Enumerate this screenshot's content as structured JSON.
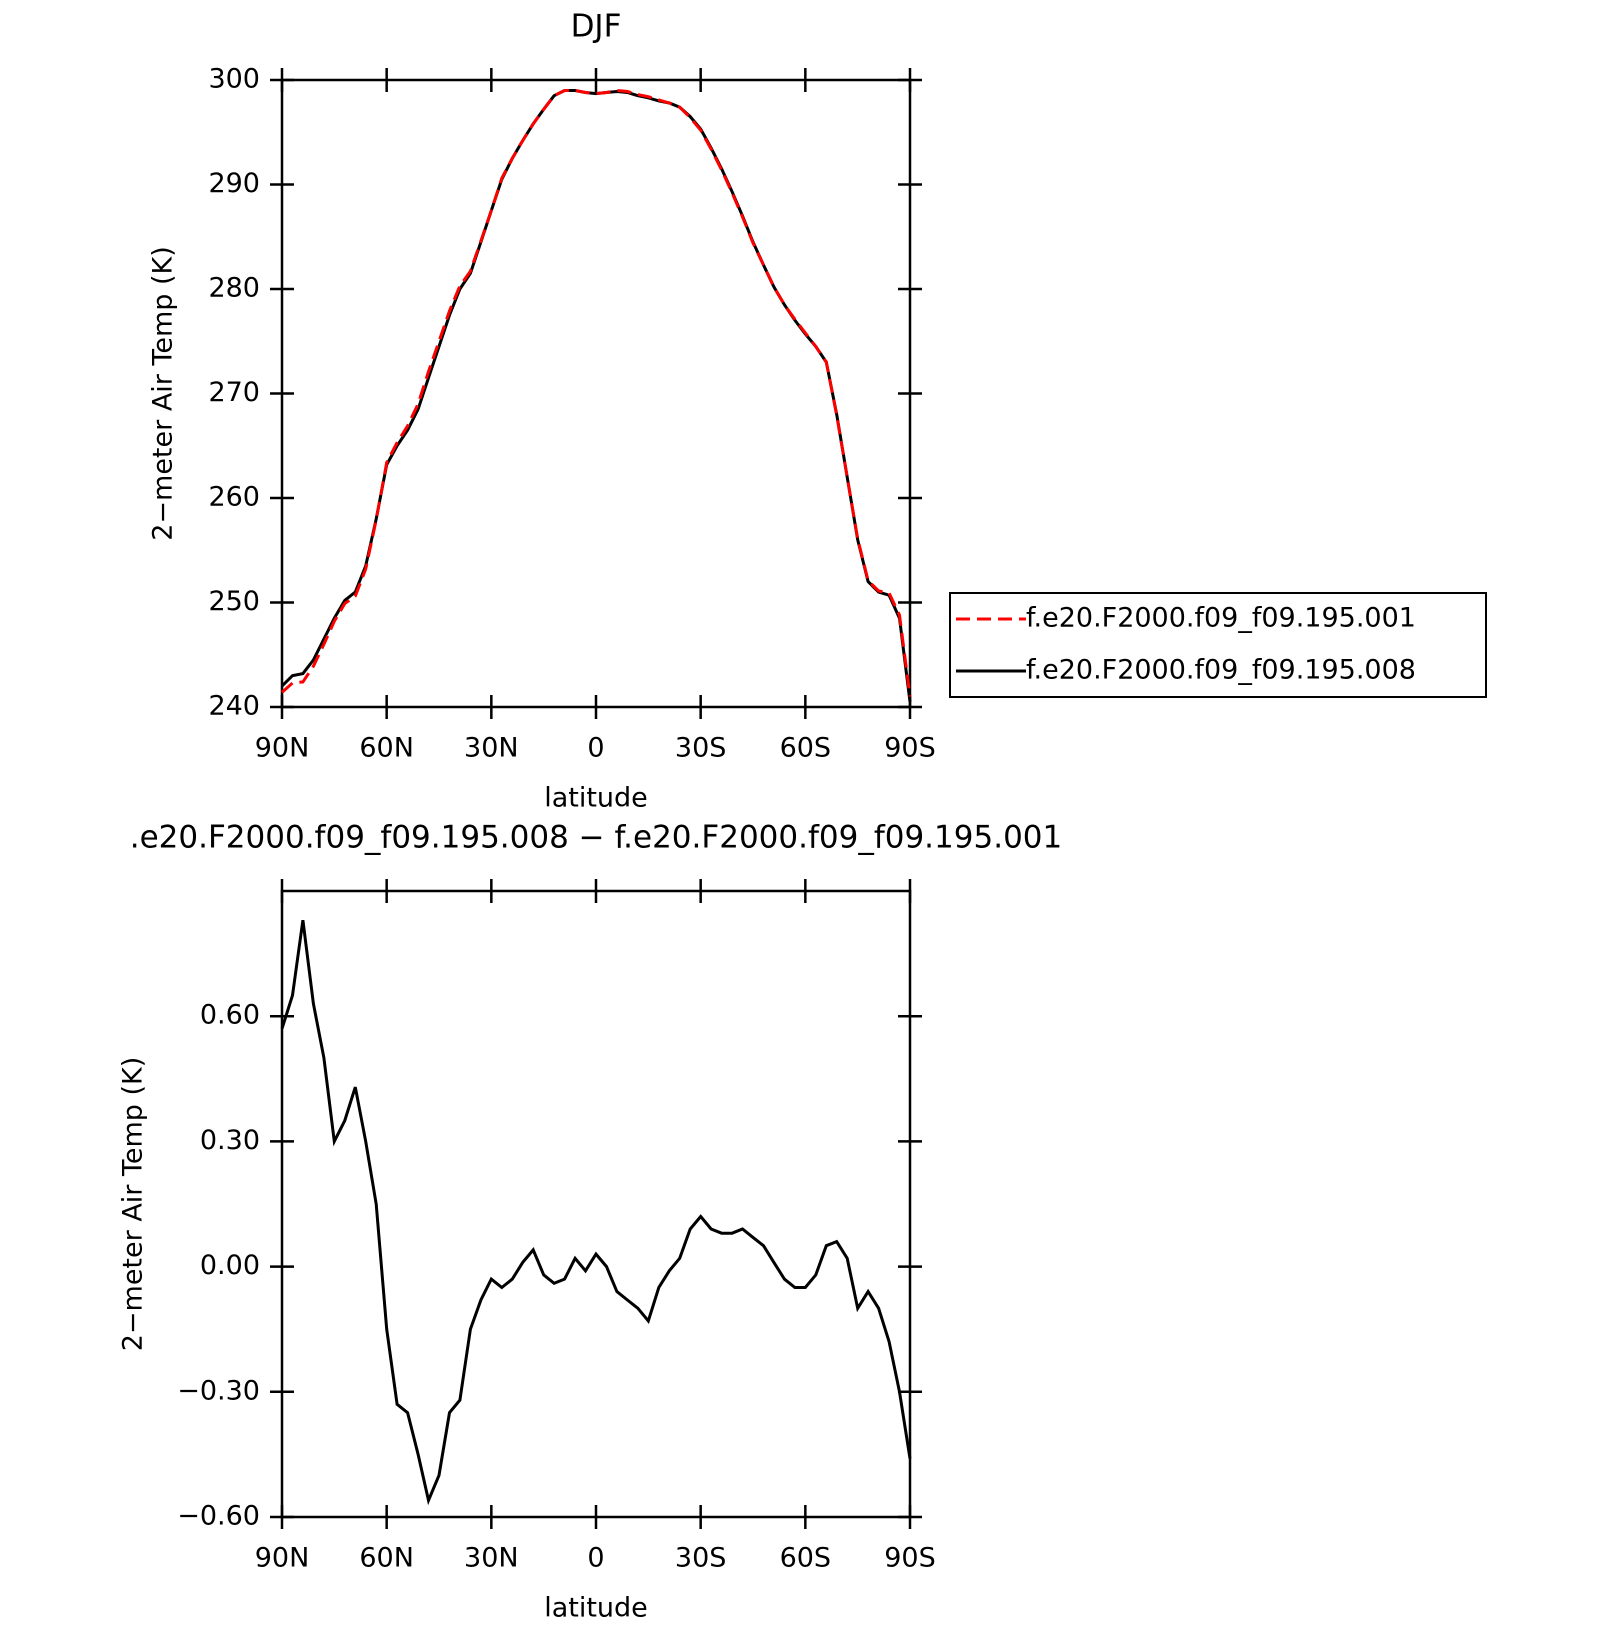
{
  "chart_data": [
    {
      "type": "line",
      "title": "DJF",
      "xlabel": "latitude",
      "ylabel": "2−meter Air Temp (K)",
      "x": [
        90,
        87,
        84,
        81,
        78,
        75,
        72,
        69,
        66,
        63,
        60,
        57,
        54,
        51,
        48,
        45,
        42,
        39,
        36,
        33,
        30,
        27,
        24,
        21,
        18,
        15,
        12,
        9,
        6,
        3,
        0,
        -3,
        -6,
        -9,
        -12,
        -15,
        -18,
        -21,
        -24,
        -27,
        -30,
        -33,
        -36,
        -39,
        -42,
        -45,
        -48,
        -51,
        -54,
        -57,
        -60,
        -63,
        -66,
        -69,
        -72,
        -75,
        -78,
        -81,
        -84,
        -87,
        -90
      ],
      "xlim": [
        90,
        -90
      ],
      "xticks": [
        {
          "value": 90,
          "label": "90N"
        },
        {
          "value": 60,
          "label": "60N"
        },
        {
          "value": 30,
          "label": "30N"
        },
        0,
        {
          "value": -30,
          "label": "30S"
        },
        {
          "value": -60,
          "label": "60S"
        },
        {
          "value": -90,
          "label": "90S"
        }
      ],
      "ylim": [
        240,
        300
      ],
      "yticks": [
        240,
        250,
        260,
        270,
        280,
        290,
        300
      ],
      "legend": "right",
      "series": [
        {
          "name": "f.e20.F2000.f09_f09.195.001",
          "color": "#ff0000",
          "dash": "dashed",
          "values": [
            241.4,
            242.3,
            242.4,
            243.9,
            246.0,
            248.2,
            249.9,
            250.6,
            253.2,
            257.9,
            263.4,
            265.3,
            266.9,
            269.0,
            272.1,
            275.0,
            277.9,
            280.3,
            281.7,
            284.6,
            287.5,
            290.6,
            292.5,
            294.2,
            295.8,
            297.2,
            298.5,
            299.0,
            299.0,
            298.8,
            298.7,
            298.8,
            299.0,
            298.9,
            298.6,
            298.4,
            298.1,
            297.8,
            297.4,
            296.4,
            295.2,
            293.4,
            291.4,
            289.2,
            286.9,
            284.4,
            282.3,
            280.2,
            278.5,
            277.1,
            275.8,
            274.5,
            273.0,
            267.9,
            262.0,
            256.1,
            252.1,
            251.1,
            250.9,
            248.8,
            241.0
          ]
        },
        {
          "name": "f.e20.F2000.f09_f09.195.008",
          "color": "#000000",
          "dash": "solid",
          "values": [
            242.0,
            243.0,
            243.2,
            244.5,
            246.5,
            248.5,
            250.2,
            251.0,
            253.5,
            258.0,
            263.2,
            265.0,
            266.5,
            268.5,
            271.5,
            274.5,
            277.5,
            280.0,
            281.5,
            284.5,
            287.5,
            290.5,
            292.5,
            294.2,
            295.8,
            297.2,
            298.5,
            299.0,
            299.0,
            298.8,
            298.7,
            298.8,
            298.9,
            298.8,
            298.5,
            298.3,
            298.0,
            297.8,
            297.4,
            296.5,
            295.3,
            293.5,
            291.5,
            289.3,
            287.0,
            284.5,
            282.3,
            280.2,
            278.5,
            277.0,
            275.7,
            274.5,
            273.0,
            268.0,
            262.0,
            256.0,
            252.0,
            251.0,
            250.7,
            248.5,
            240.5
          ]
        }
      ]
    },
    {
      "type": "line",
      "title": ".e20.F2000.f09_f09.195.008 − f.e20.F2000.f09_f09.195.001",
      "xlabel": "latitude",
      "ylabel": "2−meter Air Temp (K)",
      "x": [
        90,
        87,
        84,
        81,
        78,
        75,
        72,
        69,
        66,
        63,
        60,
        57,
        54,
        51,
        48,
        45,
        42,
        39,
        36,
        33,
        30,
        27,
        24,
        21,
        18,
        15,
        12,
        9,
        6,
        3,
        0,
        -3,
        -6,
        -9,
        -12,
        -15,
        -18,
        -21,
        -24,
        -27,
        -30,
        -33,
        -36,
        -39,
        -42,
        -45,
        -48,
        -51,
        -54,
        -57,
        -60,
        -63,
        -66,
        -69,
        -72,
        -75,
        -78,
        -81,
        -84,
        -87,
        -90
      ],
      "xlim": [
        90,
        -90
      ],
      "xticks": [
        {
          "value": 90,
          "label": "90N"
        },
        {
          "value": 60,
          "label": "60N"
        },
        {
          "value": 30,
          "label": "30N"
        },
        0,
        {
          "value": -30,
          "label": "30S"
        },
        {
          "value": -60,
          "label": "60S"
        },
        {
          "value": -90,
          "label": "90S"
        }
      ],
      "ylim": [
        -0.6,
        0.9
      ],
      "yticks": [
        {
          "value": -0.6,
          "label": "−0.60"
        },
        {
          "value": -0.3,
          "label": "−0.30"
        },
        {
          "value": 0,
          "label": "0.00"
        },
        {
          "value": 0.3,
          "label": "0.30"
        },
        {
          "value": 0.6,
          "label": "0.60"
        }
      ],
      "color": "#000000",
      "values": [
        0.57,
        0.65,
        0.83,
        0.63,
        0.5,
        0.3,
        0.35,
        0.43,
        0.3,
        0.15,
        -0.15,
        -0.33,
        -0.35,
        -0.45,
        -0.56,
        -0.5,
        -0.35,
        -0.32,
        -0.15,
        -0.08,
        -0.03,
        -0.05,
        -0.03,
        0.01,
        0.04,
        -0.02,
        -0.04,
        -0.03,
        0.02,
        -0.01,
        0.03,
        0.0,
        -0.06,
        -0.08,
        -0.1,
        -0.13,
        -0.05,
        -0.01,
        0.02,
        0.09,
        0.12,
        0.09,
        0.08,
        0.08,
        0.09,
        0.07,
        0.05,
        0.01,
        -0.03,
        -0.05,
        -0.05,
        -0.02,
        0.05,
        0.06,
        0.02,
        -0.1,
        -0.06,
        -0.1,
        -0.18,
        -0.3,
        -0.46
      ]
    }
  ]
}
